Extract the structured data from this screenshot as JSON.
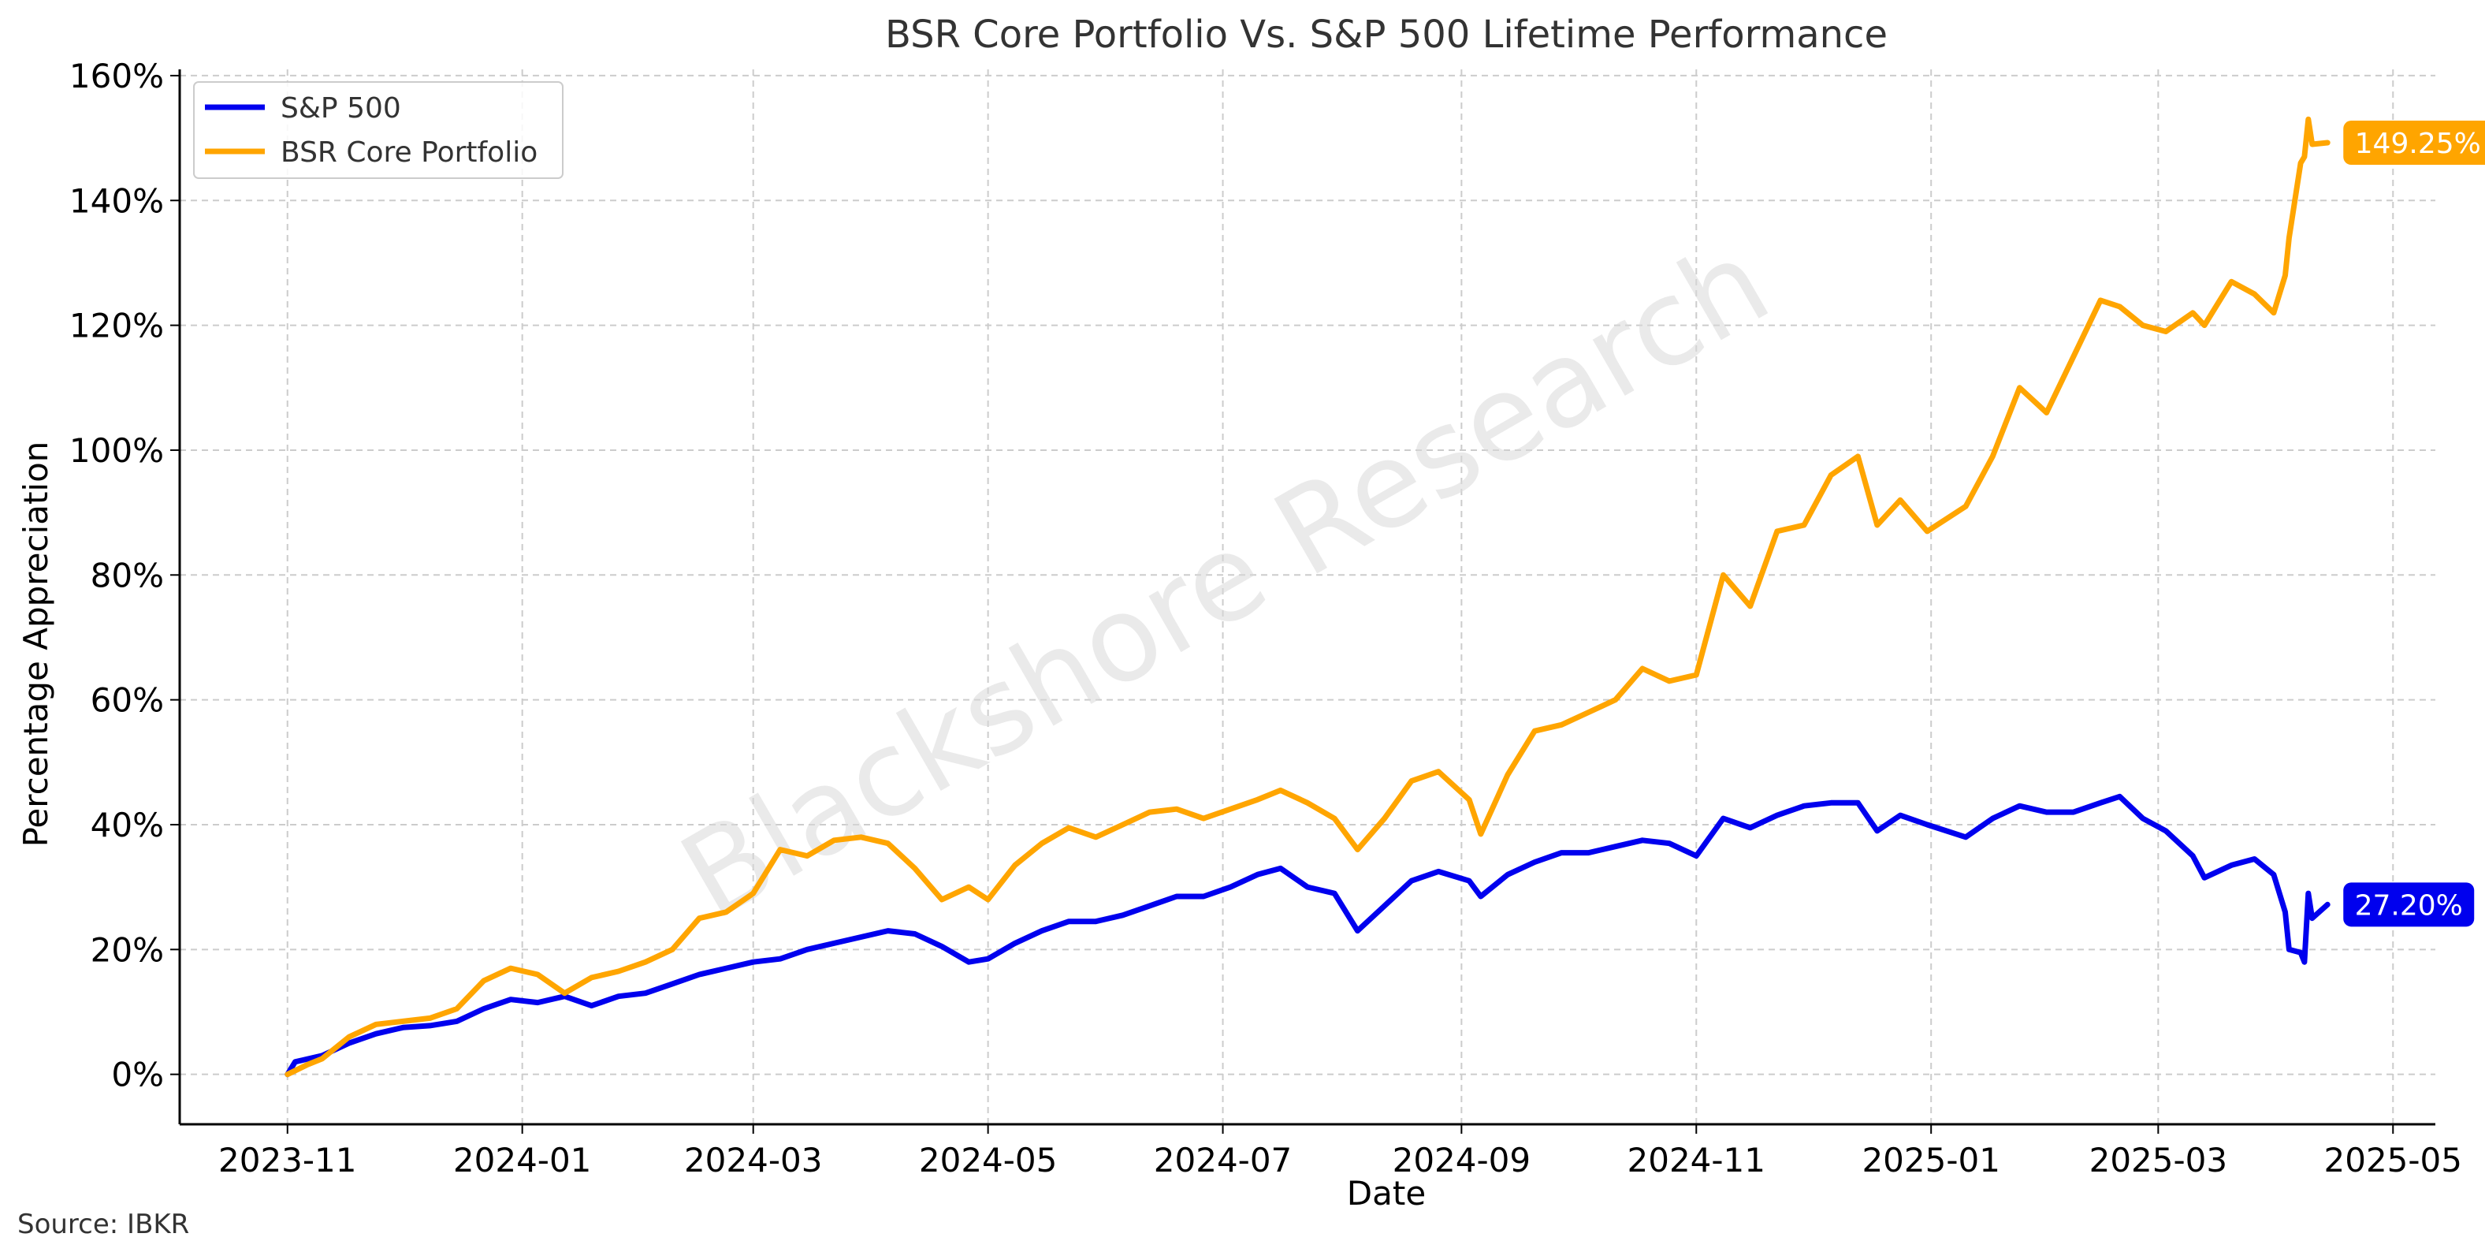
{
  "chart_data": {
    "type": "line",
    "title": "BSR Core Portfolio Vs. S&P 500 Lifetime Performance",
    "xlabel": "Date",
    "ylabel": "Percentage Appreciation",
    "source": "Source: IBKR",
    "watermark": "Blackshore Research",
    "grid": true,
    "legend_position": "top-left",
    "xlim": [
      "2023-10-04",
      "2025-05-12"
    ],
    "ylim": [
      -8,
      161
    ],
    "x_ticks": [
      {
        "date": "2023-11-01",
        "label": "2023-11"
      },
      {
        "date": "2024-01-01",
        "label": "2024-01"
      },
      {
        "date": "2024-03-01",
        "label": "2024-03"
      },
      {
        "date": "2024-05-01",
        "label": "2024-05"
      },
      {
        "date": "2024-07-01",
        "label": "2024-07"
      },
      {
        "date": "2024-09-01",
        "label": "2024-09"
      },
      {
        "date": "2024-11-01",
        "label": "2024-11"
      },
      {
        "date": "2025-01-01",
        "label": "2025-01"
      },
      {
        "date": "2025-03-01",
        "label": "2025-03"
      },
      {
        "date": "2025-05-01",
        "label": "2025-05"
      }
    ],
    "y_ticks": [
      {
        "value": 0,
        "label": "0%"
      },
      {
        "value": 20,
        "label": "20%"
      },
      {
        "value": 40,
        "label": "40%"
      },
      {
        "value": 60,
        "label": "60%"
      },
      {
        "value": 80,
        "label": "80%"
      },
      {
        "value": 100,
        "label": "100%"
      },
      {
        "value": 120,
        "label": "120%"
      },
      {
        "value": 140,
        "label": "140%"
      },
      {
        "value": 160,
        "label": "160%"
      }
    ],
    "series": [
      {
        "name": "S&P 500",
        "color": "#0000ee",
        "end_label": "27.20%",
        "points": [
          [
            "2023-11-01",
            0
          ],
          [
            "2023-11-03",
            2
          ],
          [
            "2023-11-10",
            3
          ],
          [
            "2023-11-17",
            5
          ],
          [
            "2023-11-24",
            6.5
          ],
          [
            "2023-12-01",
            7.5
          ],
          [
            "2023-12-08",
            7.8
          ],
          [
            "2023-12-15",
            8.5
          ],
          [
            "2023-12-22",
            10.5
          ],
          [
            "2023-12-29",
            12
          ],
          [
            "2024-01-05",
            11.5
          ],
          [
            "2024-01-12",
            12.5
          ],
          [
            "2024-01-19",
            11
          ],
          [
            "2024-01-26",
            12.5
          ],
          [
            "2024-02-02",
            13
          ],
          [
            "2024-02-09",
            14.5
          ],
          [
            "2024-02-16",
            16
          ],
          [
            "2024-02-23",
            17
          ],
          [
            "2024-03-01",
            18
          ],
          [
            "2024-03-08",
            18.5
          ],
          [
            "2024-03-15",
            20
          ],
          [
            "2024-03-22",
            21
          ],
          [
            "2024-03-29",
            22
          ],
          [
            "2024-04-05",
            23
          ],
          [
            "2024-04-12",
            22.5
          ],
          [
            "2024-04-19",
            20.5
          ],
          [
            "2024-04-26",
            18
          ],
          [
            "2024-05-01",
            18.5
          ],
          [
            "2024-05-08",
            21
          ],
          [
            "2024-05-15",
            23
          ],
          [
            "2024-05-22",
            24.5
          ],
          [
            "2024-05-29",
            24.5
          ],
          [
            "2024-06-05",
            25.5
          ],
          [
            "2024-06-12",
            27
          ],
          [
            "2024-06-19",
            28.5
          ],
          [
            "2024-06-26",
            28.5
          ],
          [
            "2024-07-03",
            30
          ],
          [
            "2024-07-10",
            32
          ],
          [
            "2024-07-16",
            33
          ],
          [
            "2024-07-23",
            30
          ],
          [
            "2024-07-30",
            29
          ],
          [
            "2024-08-05",
            23
          ],
          [
            "2024-08-12",
            27
          ],
          [
            "2024-08-19",
            31
          ],
          [
            "2024-08-26",
            32.5
          ],
          [
            "2024-09-03",
            31
          ],
          [
            "2024-09-06",
            28.5
          ],
          [
            "2024-09-13",
            32
          ],
          [
            "2024-09-20",
            34
          ],
          [
            "2024-09-27",
            35.5
          ],
          [
            "2024-10-04",
            35.5
          ],
          [
            "2024-10-11",
            36.5
          ],
          [
            "2024-10-18",
            37.5
          ],
          [
            "2024-10-25",
            37
          ],
          [
            "2024-11-01",
            35
          ],
          [
            "2024-11-08",
            41
          ],
          [
            "2024-11-15",
            39.5
          ],
          [
            "2024-11-22",
            41.5
          ],
          [
            "2024-11-29",
            43
          ],
          [
            "2024-12-06",
            43.5
          ],
          [
            "2024-12-13",
            43.5
          ],
          [
            "2024-12-18",
            39
          ],
          [
            "2024-12-24",
            41.5
          ],
          [
            "2024-12-31",
            40
          ],
          [
            "2025-01-10",
            38
          ],
          [
            "2025-01-17",
            41
          ],
          [
            "2025-01-24",
            43
          ],
          [
            "2025-01-31",
            42
          ],
          [
            "2025-02-07",
            42
          ],
          [
            "2025-02-14",
            43.5
          ],
          [
            "2025-02-19",
            44.5
          ],
          [
            "2025-02-25",
            41
          ],
          [
            "2025-03-03",
            39
          ],
          [
            "2025-03-10",
            35
          ],
          [
            "2025-03-13",
            31.5
          ],
          [
            "2025-03-20",
            33.5
          ],
          [
            "2025-03-26",
            34.5
          ],
          [
            "2025-03-31",
            32
          ],
          [
            "2025-04-03",
            26
          ],
          [
            "2025-04-04",
            20
          ],
          [
            "2025-04-07",
            19.5
          ],
          [
            "2025-04-08",
            18
          ],
          [
            "2025-04-09",
            29
          ],
          [
            "2025-04-10",
            25
          ],
          [
            "2025-04-14",
            27.2
          ]
        ]
      },
      {
        "name": "BSR Core Portfolio",
        "color": "#ffa500",
        "end_label": "149.25%",
        "points": [
          [
            "2023-11-01",
            0
          ],
          [
            "2023-11-06",
            1.5
          ],
          [
            "2023-11-10",
            2.5
          ],
          [
            "2023-11-17",
            6
          ],
          [
            "2023-11-24",
            8
          ],
          [
            "2023-12-01",
            8.5
          ],
          [
            "2023-12-08",
            9
          ],
          [
            "2023-12-15",
            10.5
          ],
          [
            "2023-12-22",
            15
          ],
          [
            "2023-12-29",
            17
          ],
          [
            "2024-01-05",
            16
          ],
          [
            "2024-01-12",
            13
          ],
          [
            "2024-01-19",
            15.5
          ],
          [
            "2024-01-26",
            16.5
          ],
          [
            "2024-02-02",
            18
          ],
          [
            "2024-02-09",
            20
          ],
          [
            "2024-02-16",
            25
          ],
          [
            "2024-02-23",
            26
          ],
          [
            "2024-03-01",
            29
          ],
          [
            "2024-03-08",
            36
          ],
          [
            "2024-03-15",
            35
          ],
          [
            "2024-03-22",
            37.5
          ],
          [
            "2024-03-29",
            38
          ],
          [
            "2024-04-05",
            37
          ],
          [
            "2024-04-12",
            33
          ],
          [
            "2024-04-19",
            28
          ],
          [
            "2024-04-26",
            30
          ],
          [
            "2024-05-01",
            28
          ],
          [
            "2024-05-08",
            33.5
          ],
          [
            "2024-05-15",
            37
          ],
          [
            "2024-05-22",
            39.5
          ],
          [
            "2024-05-29",
            38
          ],
          [
            "2024-06-05",
            40
          ],
          [
            "2024-06-12",
            42
          ],
          [
            "2024-06-19",
            42.5
          ],
          [
            "2024-06-26",
            41
          ],
          [
            "2024-07-03",
            42.5
          ],
          [
            "2024-07-10",
            44
          ],
          [
            "2024-07-16",
            45.5
          ],
          [
            "2024-07-23",
            43.5
          ],
          [
            "2024-07-30",
            41
          ],
          [
            "2024-08-05",
            36
          ],
          [
            "2024-08-12",
            41
          ],
          [
            "2024-08-19",
            47
          ],
          [
            "2024-08-26",
            48.5
          ],
          [
            "2024-09-03",
            44
          ],
          [
            "2024-09-06",
            38.5
          ],
          [
            "2024-09-13",
            48
          ],
          [
            "2024-09-20",
            55
          ],
          [
            "2024-09-27",
            56
          ],
          [
            "2024-10-04",
            58
          ],
          [
            "2024-10-11",
            60
          ],
          [
            "2024-10-18",
            65
          ],
          [
            "2024-10-25",
            63
          ],
          [
            "2024-11-01",
            64
          ],
          [
            "2024-11-08",
            80
          ],
          [
            "2024-11-15",
            75
          ],
          [
            "2024-11-22",
            87
          ],
          [
            "2024-11-29",
            88
          ],
          [
            "2024-12-06",
            96
          ],
          [
            "2024-12-13",
            99
          ],
          [
            "2024-12-18",
            88
          ],
          [
            "2024-12-24",
            92
          ],
          [
            "2024-12-31",
            87
          ],
          [
            "2025-01-10",
            91
          ],
          [
            "2025-01-17",
            99
          ],
          [
            "2025-01-24",
            110
          ],
          [
            "2025-01-31",
            106
          ],
          [
            "2025-02-07",
            115
          ],
          [
            "2025-02-14",
            124
          ],
          [
            "2025-02-19",
            123
          ],
          [
            "2025-02-25",
            120
          ],
          [
            "2025-03-03",
            119
          ],
          [
            "2025-03-10",
            122
          ],
          [
            "2025-03-13",
            120
          ],
          [
            "2025-03-20",
            127
          ],
          [
            "2025-03-26",
            125
          ],
          [
            "2025-03-31",
            122
          ],
          [
            "2025-04-03",
            128
          ],
          [
            "2025-04-04",
            134
          ],
          [
            "2025-04-07",
            146
          ],
          [
            "2025-04-08",
            147
          ],
          [
            "2025-04-09",
            153
          ],
          [
            "2025-04-10",
            149
          ],
          [
            "2025-04-14",
            149.25
          ]
        ]
      }
    ]
  }
}
